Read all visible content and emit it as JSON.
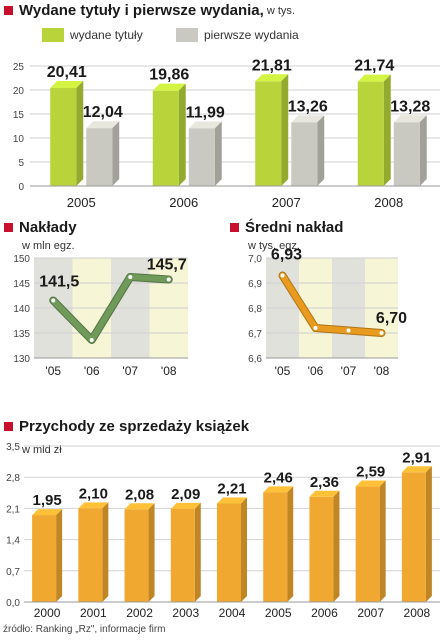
{
  "chart_data": [
    {
      "type": "bar",
      "title": "Wydane tytuły i pierwsze wydania,",
      "unit": "w tys.",
      "categories": [
        "2005",
        "2006",
        "2007",
        "2008"
      ],
      "series": [
        {
          "name": "wydane tytuły",
          "values": [
            20.41,
            19.86,
            21.81,
            21.74
          ],
          "labels": [
            "20,41",
            "19,86",
            "21,81",
            "21,74"
          ],
          "color": "#b8d43a"
        },
        {
          "name": "pierwsze wydania",
          "values": [
            12.04,
            11.99,
            13.26,
            13.28
          ],
          "labels": [
            "12,04",
            "11,99",
            "13,26",
            "13,28"
          ],
          "color": "#c9c9c1"
        }
      ],
      "ylim": [
        0,
        25
      ],
      "yticks": [
        "0",
        "5",
        "10",
        "15",
        "20",
        "25"
      ],
      "grid": true
    },
    {
      "type": "line",
      "title": "Nakłady",
      "unit": "w mln egz.",
      "categories": [
        "'05",
        "'06",
        "'07",
        "'08"
      ],
      "values": [
        141.5,
        133.6,
        146.2,
        145.7
      ],
      "labels": [
        "141,5",
        "",
        "",
        "145,7"
      ],
      "ylim": [
        130,
        150
      ],
      "yticks": [
        "130",
        "135",
        "140",
        "145",
        "150"
      ],
      "color": "#6f9a5a"
    },
    {
      "type": "line",
      "title": "Średni nakład",
      "unit": "w tys. egz.",
      "categories": [
        "'05",
        "'06",
        "'07",
        "'08"
      ],
      "values": [
        6.93,
        6.72,
        6.71,
        6.7
      ],
      "labels": [
        "6,93",
        "",
        "",
        "6,70"
      ],
      "ylim": [
        6.6,
        7.0
      ],
      "yticks": [
        "6,6",
        "6,7",
        "6,8",
        "6,9",
        "7,0"
      ],
      "color": "#e89b1e"
    },
    {
      "type": "bar",
      "title": "Przychody ze sprzedaży książek",
      "unit": "w mld zł",
      "categories": [
        "2000",
        "2001",
        "2002",
        "2003",
        "2004",
        "2005",
        "2006",
        "2007",
        "2008"
      ],
      "values": [
        1.95,
        2.1,
        2.08,
        2.09,
        2.21,
        2.46,
        2.36,
        2.59,
        2.91
      ],
      "labels": [
        "1,95",
        "2,10",
        "2,08",
        "2,09",
        "2,21",
        "2,46",
        "2,36",
        "2,59",
        "2,91"
      ],
      "ylim": [
        0,
        3.5
      ],
      "yticks": [
        "0,0",
        "0,7",
        "1,4",
        "2,1",
        "2,8",
        "3,5"
      ],
      "color": "#f0a830",
      "grid": true
    }
  ],
  "source": "źródło: Ranking „Rz\", informacje firm"
}
